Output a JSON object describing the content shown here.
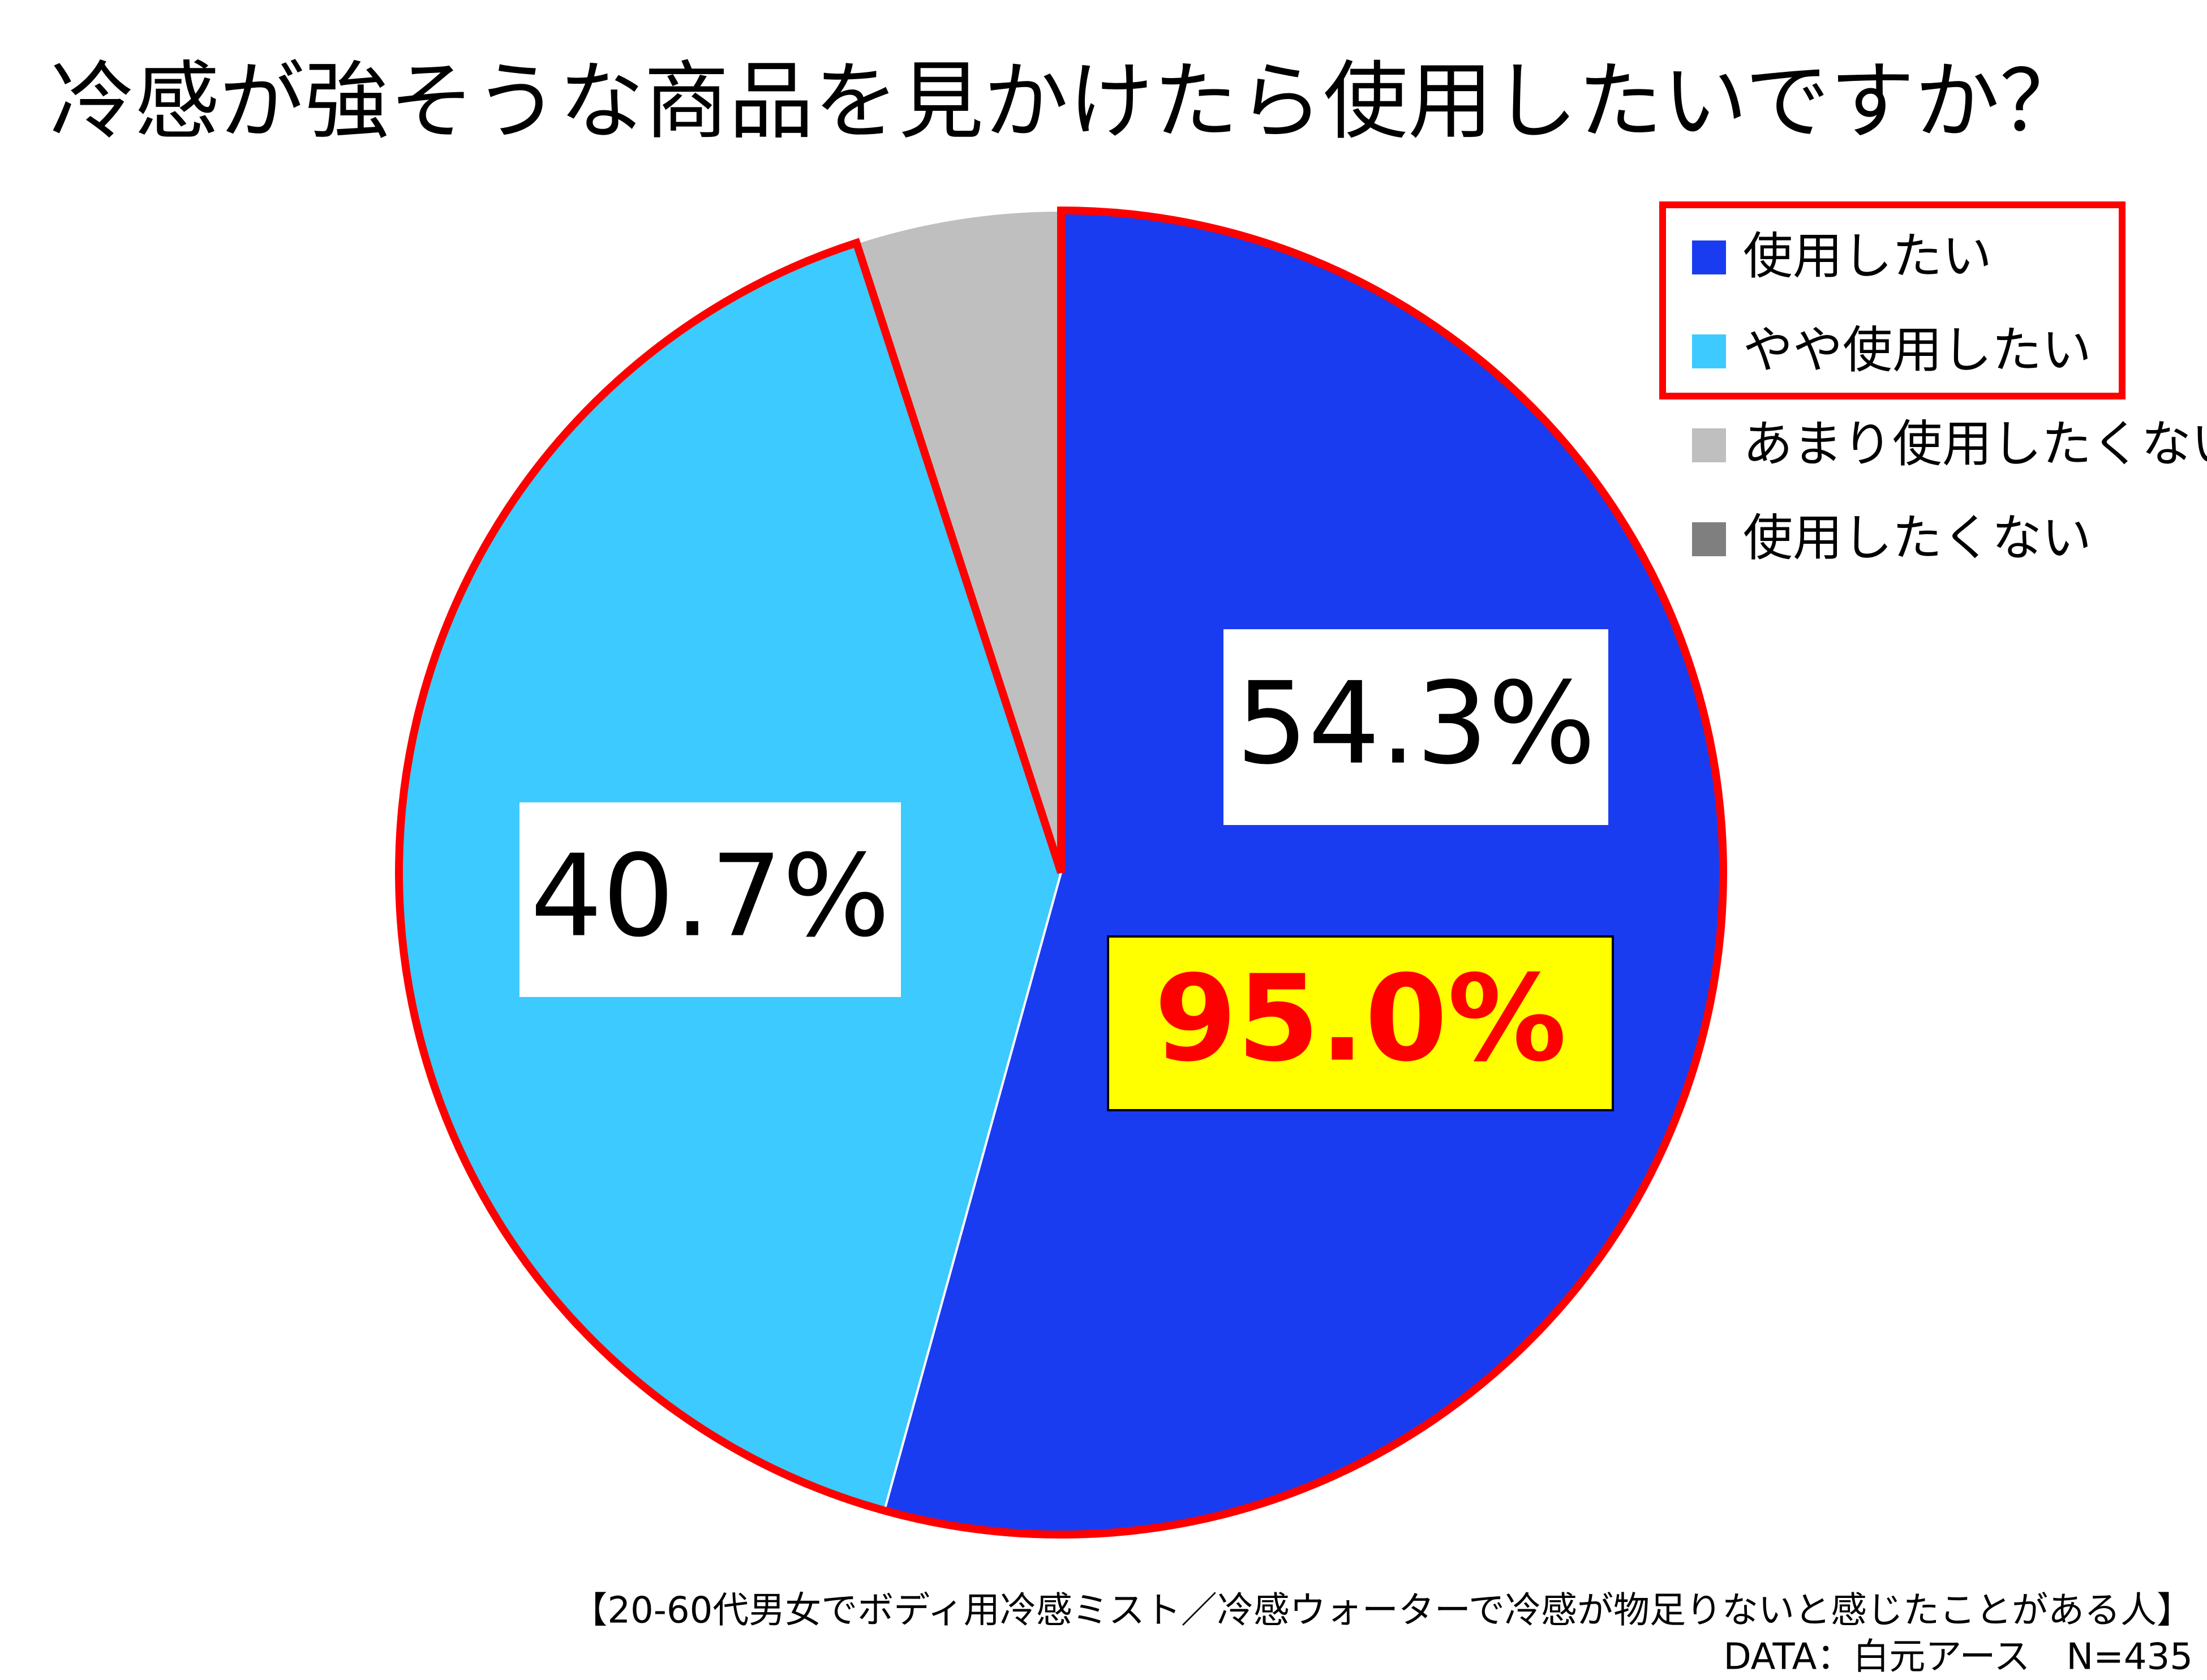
{
  "chart_data": {
    "type": "pie",
    "title": "冷感が強そうな商品を見かけたら使用したいですか？",
    "categories": [
      "使用したい",
      "やや使用したい",
      "あまり使用したくない",
      "使用したくない"
    ],
    "values": [
      54.3,
      40.7,
      5.0,
      0
    ],
    "value_labels": [
      "54.3%",
      "40.7%",
      null,
      null
    ],
    "colors": [
      "#1a3cf0",
      "#3ccaff",
      "#bfbfbf",
      "#7f7f7f"
    ],
    "annotation": "95.0%",
    "footnotes": [
      "【20-60代男女でボディ用冷感ミスト／冷感ウォーターで冷感が物足りないと感じたことがある人】",
      "DATA：白元アース　N=435"
    ],
    "legend": "right"
  }
}
